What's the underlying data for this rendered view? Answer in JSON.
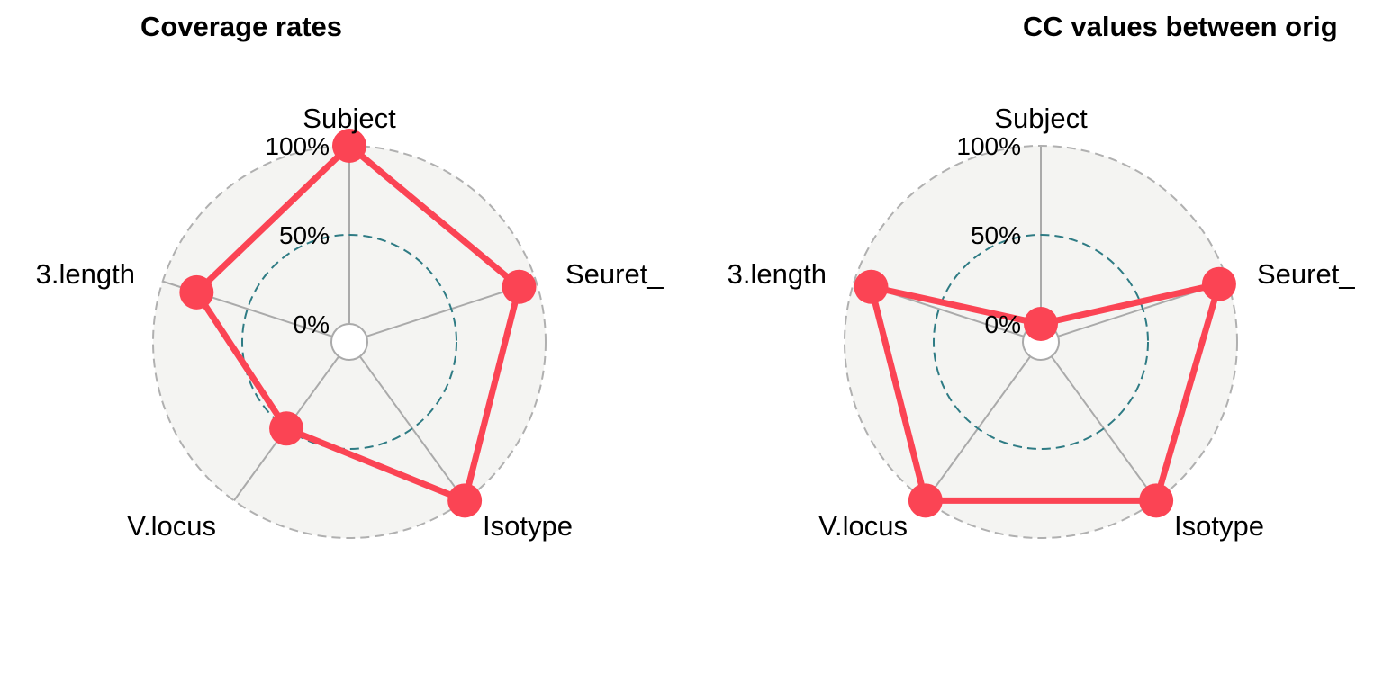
{
  "chart_data": [
    {
      "type": "radar",
      "title": "Coverage rates",
      "categories": [
        "Subject",
        "Seuret_",
        "Isotype",
        "V.locus",
        "3.length"
      ],
      "grid_labels": [
        "0%",
        "50%",
        "100%"
      ],
      "grid_values": [
        0,
        50,
        100
      ],
      "ylim": [
        0,
        100
      ],
      "series": [
        {
          "values": [
            100,
            90,
            100,
            50,
            80
          ]
        }
      ]
    },
    {
      "type": "radar",
      "title": "CC values between orig",
      "categories": [
        "Subject",
        "Seuret_",
        "Isotype",
        "V.locus",
        "3.length"
      ],
      "grid_labels": [
        "0%",
        "50%",
        "100%"
      ],
      "grid_values": [
        0,
        50,
        100
      ],
      "ylim": [
        0,
        100
      ],
      "series": [
        {
          "values": [
            0,
            95,
            100,
            100,
            90
          ]
        }
      ]
    }
  ],
  "colors": {
    "series": "#fb4454",
    "panel_fill": "#f4f4f2",
    "outer_grid": "#b0b0b0",
    "mid_grid": "#2e7b84",
    "spokes": "#aaaaaa"
  }
}
